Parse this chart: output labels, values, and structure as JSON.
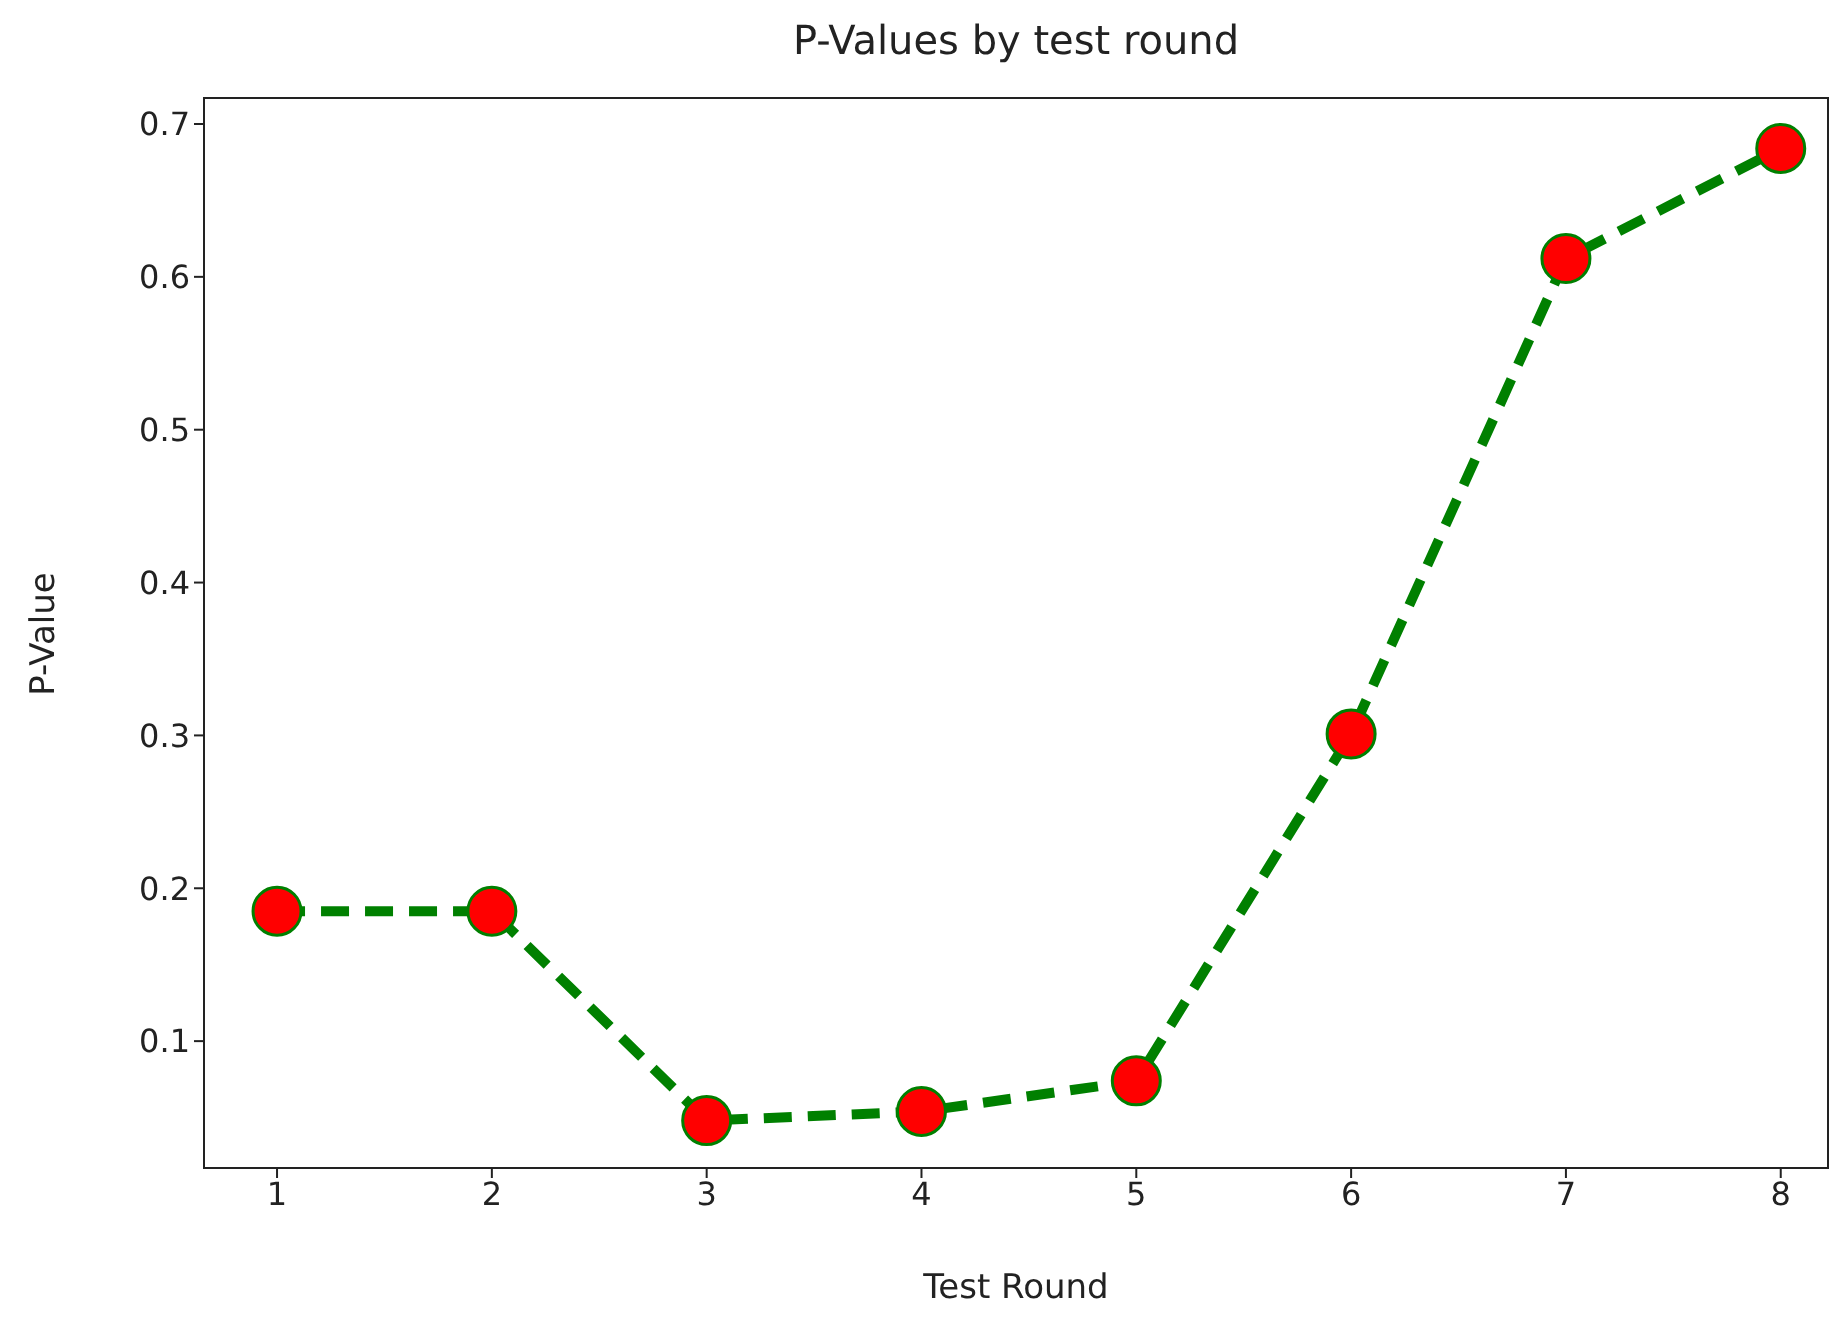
{
  "chart_data": {
    "type": "line",
    "title": "P-Values by test round",
    "xlabel": "Test Round",
    "ylabel": "P-Value",
    "x": [
      1,
      2,
      3,
      4,
      5,
      6,
      7,
      8
    ],
    "series": [
      {
        "color": "#008000",
        "colors": [
          "#ff0000",
          "#ff0000",
          "#ff0000",
          "#ff0000",
          "#ff0000",
          "#ff0000",
          "#ff0000",
          "#ff0000"
        ],
        "values": [
          0.185,
          0.185,
          0.048,
          0.054,
          0.074,
          0.301,
          0.612,
          0.684
        ]
      }
    ],
    "xlim": [
      0.66,
      8.22
    ],
    "xticks": [
      1,
      2,
      3,
      4,
      5,
      6,
      7,
      8
    ],
    "ylim": [
      0.017,
      0.717
    ],
    "yticks": [
      0.1,
      0.2,
      0.3,
      0.4,
      0.5,
      0.6,
      0.7
    ],
    "grid": false,
    "legend": false,
    "marker": "circle",
    "line_style": "dashed"
  }
}
